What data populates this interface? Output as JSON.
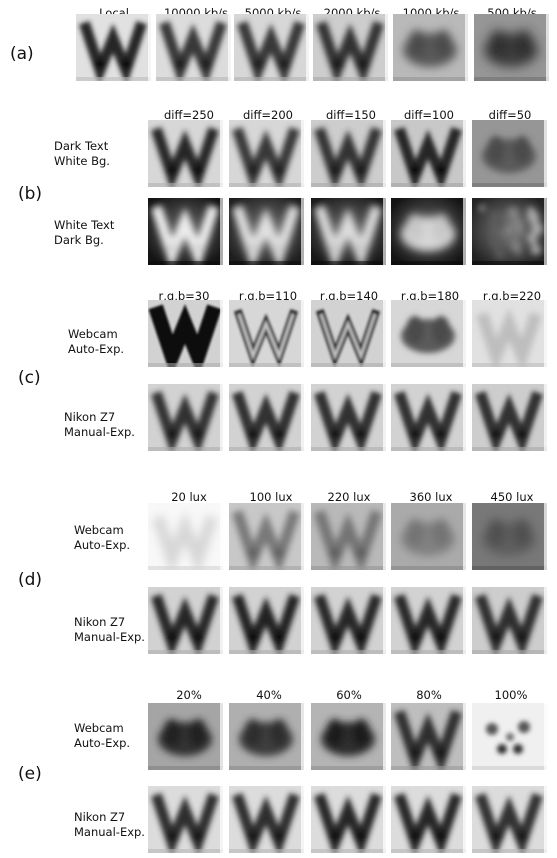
{
  "panels": {
    "a": {
      "label": "(a)",
      "columns": [
        "Local",
        "10000 kb/s",
        "5000 kb/s",
        "2000 kb/s",
        "1000 kb/s",
        "500 kb/s"
      ]
    },
    "b": {
      "label": "(b)",
      "columns": [
        "diff=250",
        "diff=200",
        "diff=150",
        "diff=100",
        "diff=50"
      ],
      "rows": [
        {
          "line1": "Dark Text",
          "line2": "White Bg."
        },
        {
          "line1": "White Text",
          "line2": "Dark Bg."
        }
      ]
    },
    "c": {
      "label": "(c)",
      "columns": [
        "r,g,b=30",
        "r,g,b=110",
        "r,g,b=140",
        "r,g,b=180",
        "r,g,b=220"
      ],
      "rows": [
        {
          "line1": "Webcam",
          "line2": "Auto-Exp."
        },
        {
          "line1": "Nikon Z7",
          "line2": "Manual-Exp."
        }
      ]
    },
    "d": {
      "label": "(d)",
      "columns": [
        "20 lux",
        "100 lux",
        "220 lux",
        "360 lux",
        "450 lux"
      ],
      "rows": [
        {
          "line1": "Webcam",
          "line2": "Auto-Exp."
        },
        {
          "line1": "Nikon Z7",
          "line2": "Manual-Exp."
        }
      ]
    },
    "e": {
      "label": "(e)",
      "columns": [
        "20%",
        "40%",
        "60%",
        "80%",
        "100%"
      ],
      "rows": [
        {
          "line1": "Webcam",
          "line2": "Auto-Exp."
        },
        {
          "line1": "Nikon Z7",
          "line2": "Manual-Exp."
        }
      ]
    }
  }
}
